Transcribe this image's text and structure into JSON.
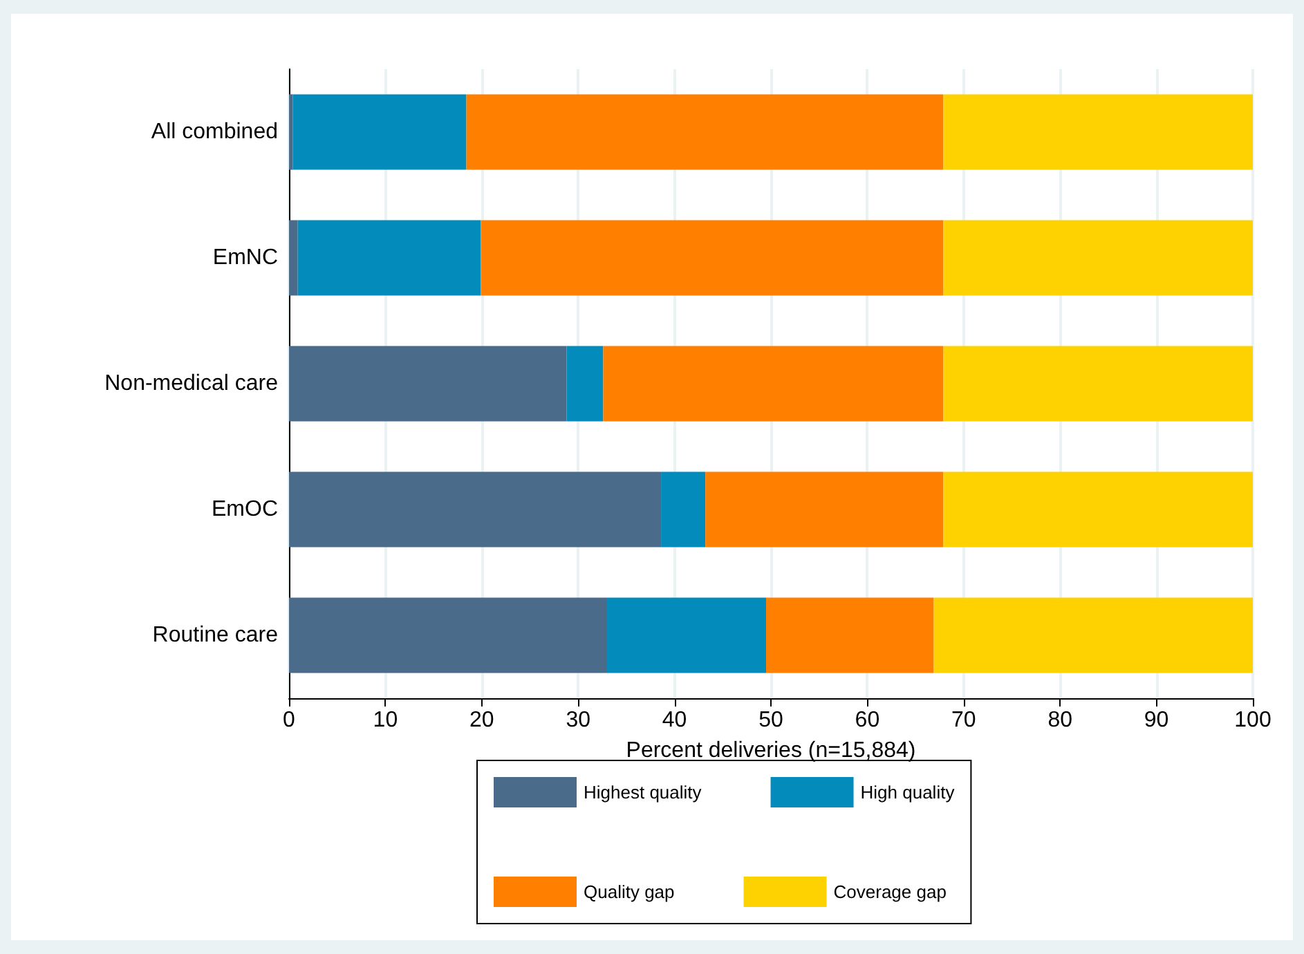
{
  "chart_data": {
    "type": "bar",
    "orientation": "horizontal",
    "stacked": true,
    "categories": [
      "All combined",
      "EmNC",
      "Non-medical care",
      "EmOC",
      "Routine care"
    ],
    "series": [
      {
        "name": "Highest quality",
        "color": "#4a6b8a",
        "values": [
          0.4,
          0.9,
          28.8,
          38.6,
          33.0
        ]
      },
      {
        "name": "High quality",
        "color": "#028bbb",
        "values": [
          18.0,
          19.0,
          3.8,
          4.6,
          16.5
        ]
      },
      {
        "name": "Quality gap",
        "color": "#ff7f00",
        "values": [
          49.5,
          48.0,
          35.3,
          24.7,
          17.4
        ]
      },
      {
        "name": "Coverage gap",
        "color": "#fed100",
        "values": [
          32.1,
          32.1,
          32.1,
          32.1,
          33.1
        ]
      }
    ],
    "xlabel": "Percent deliveries (n=15,884)",
    "xlim": [
      0,
      100
    ],
    "xticks": [
      0,
      10,
      20,
      30,
      40,
      50,
      60,
      70,
      80,
      90,
      100
    ],
    "grid": "x",
    "legend": "bottom"
  }
}
